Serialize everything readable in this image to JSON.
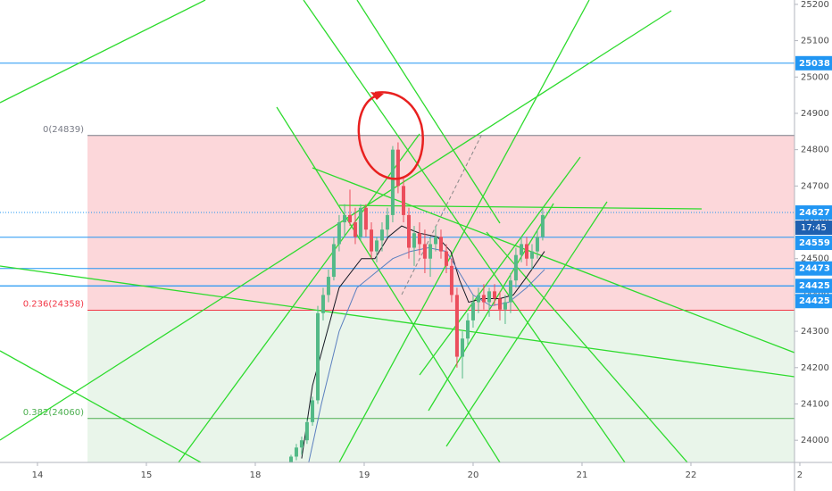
{
  "chart_data": {
    "type": "candlestick",
    "up_color": "#53b987",
    "down_color": "#eb4d5c",
    "x": [
      2.328,
      2.377,
      2.426,
      2.475,
      2.525,
      2.574,
      2.623,
      2.672,
      2.721,
      2.77,
      2.82,
      2.869,
      2.918,
      2.967,
      3.016,
      3.066,
      3.115,
      3.164,
      3.213,
      3.262,
      3.311,
      3.361,
      3.41,
      3.459,
      3.508,
      3.557,
      3.607,
      3.656,
      3.705,
      3.754,
      3.803,
      3.852,
      3.902,
      3.951,
      4.0,
      4.049,
      4.098,
      4.148,
      4.197,
      4.246,
      4.295,
      4.344,
      4.393,
      4.443,
      4.492,
      4.541,
      4.59,
      4.639
    ],
    "open": [
      23940,
      23955,
      23980,
      24000,
      24050,
      24110,
      24350,
      24400,
      24450,
      24540,
      24600,
      24620,
      24600,
      24560,
      24640,
      24580,
      24520,
      24550,
      24580,
      24620,
      24800,
      24700,
      24620,
      24530,
      24570,
      24540,
      24500,
      24540,
      24560,
      24520,
      24480,
      24400,
      24230,
      24280,
      24330,
      24380,
      24400,
      24380,
      24410,
      24390,
      24360,
      24380,
      24440,
      24510,
      24540,
      24500,
      24520,
      24560
    ],
    "high": [
      23960,
      23990,
      24010,
      24060,
      24120,
      24370,
      24420,
      24470,
      24560,
      24620,
      24650,
      24690,
      24640,
      24650,
      24650,
      24600,
      24560,
      24600,
      24640,
      24810,
      24820,
      24720,
      24640,
      24590,
      24600,
      24580,
      24560,
      24590,
      24580,
      24540,
      24500,
      24420,
      24300,
      24350,
      24400,
      24420,
      24430,
      24420,
      24430,
      24410,
      24400,
      24460,
      24530,
      24560,
      24560,
      24540,
      24580,
      24640
    ],
    "low": [
      23930,
      23945,
      23960,
      23990,
      24040,
      24100,
      24330,
      24380,
      24440,
      24520,
      24560,
      24590,
      24540,
      24550,
      24560,
      24500,
      24490,
      24520,
      24560,
      24600,
      24680,
      24600,
      24500,
      24480,
      24510,
      24460,
      24450,
      24520,
      24500,
      24460,
      24380,
      24200,
      24170,
      24260,
      24310,
      24350,
      24360,
      24340,
      24370,
      24330,
      24320,
      24350,
      24420,
      24490,
      24480,
      24470,
      24500,
      24550
    ],
    "close": [
      23955,
      23980,
      24000,
      24050,
      24110,
      24350,
      24400,
      24450,
      24540,
      24600,
      24620,
      24600,
      24560,
      24640,
      24580,
      24520,
      24550,
      24580,
      24620,
      24800,
      24700,
      24620,
      24530,
      24570,
      24540,
      24500,
      24540,
      24560,
      24520,
      24480,
      24400,
      24230,
      24280,
      24330,
      24380,
      24400,
      24380,
      24410,
      24390,
      24360,
      24380,
      24440,
      24510,
      24540,
      24500,
      24520,
      24560,
      24620
    ],
    "series": [
      {
        "color": "#131722",
        "x": [
          2.426,
          2.525,
          2.77,
          2.975,
          3.098,
          3.221,
          3.344,
          3.508,
          3.672,
          3.795,
          3.877,
          3.959,
          4.082,
          4.246,
          4.369,
          4.492,
          4.656
        ],
        "values": [
          23950,
          24150,
          24420,
          24500,
          24500,
          24560,
          24590,
          24570,
          24560,
          24520,
          24440,
          24380,
          24390,
          24390,
          24400,
          24450,
          24520
        ]
      },
      {
        "color": "#5b7fbf",
        "x": [
          2.484,
          2.607,
          2.77,
          2.934,
          3.098,
          3.262,
          3.426,
          3.59,
          3.754,
          3.877,
          4.0,
          4.164,
          4.328,
          4.492,
          4.656
        ],
        "values": [
          23930,
          24100,
          24300,
          24420,
          24460,
          24500,
          24520,
          24530,
          24520,
          24460,
          24400,
          24370,
          24380,
          24420,
          24470
        ]
      }
    ],
    "xlim": [
      -0.344,
      6.951
    ],
    "xticks": [
      {
        "value": 0,
        "label": "14"
      },
      {
        "value": 1,
        "label": "15"
      },
      {
        "value": 2,
        "label": "18"
      },
      {
        "value": 3,
        "label": "19"
      },
      {
        "value": 4,
        "label": "20"
      },
      {
        "value": 5,
        "label": "21"
      },
      {
        "value": 6,
        "label": "22"
      },
      {
        "value": 7,
        "label": "2"
      }
    ],
    "ylim": [
      23939,
      25212
    ],
    "yticks": [
      24000,
      24100,
      24200,
      24300,
      24400,
      24500,
      24600,
      24700,
      24800,
      24900,
      25000,
      25100,
      25200
    ],
    "fib_levels": [
      {
        "value": 24839,
        "label": "0(24839)",
        "color": "#787b86"
      },
      {
        "value": 24358,
        "label": "0.236(24358)",
        "color": "#f23645"
      },
      {
        "value": 24060,
        "label": "0.382(24060)",
        "color": "#4caf50"
      }
    ],
    "price_lines": [
      {
        "value": 25038,
        "color": "#2196f3"
      },
      {
        "value": 24627,
        "color": "#2196f3",
        "dotted": true
      },
      {
        "value": 24559,
        "color": "#2196f3"
      },
      {
        "value": 24473,
        "color": "#2196f3"
      },
      {
        "value": 24425,
        "color": "#2196f3"
      },
      {
        "value": 24425,
        "color": "#2196f3"
      }
    ],
    "countdown": "17:45"
  }
}
